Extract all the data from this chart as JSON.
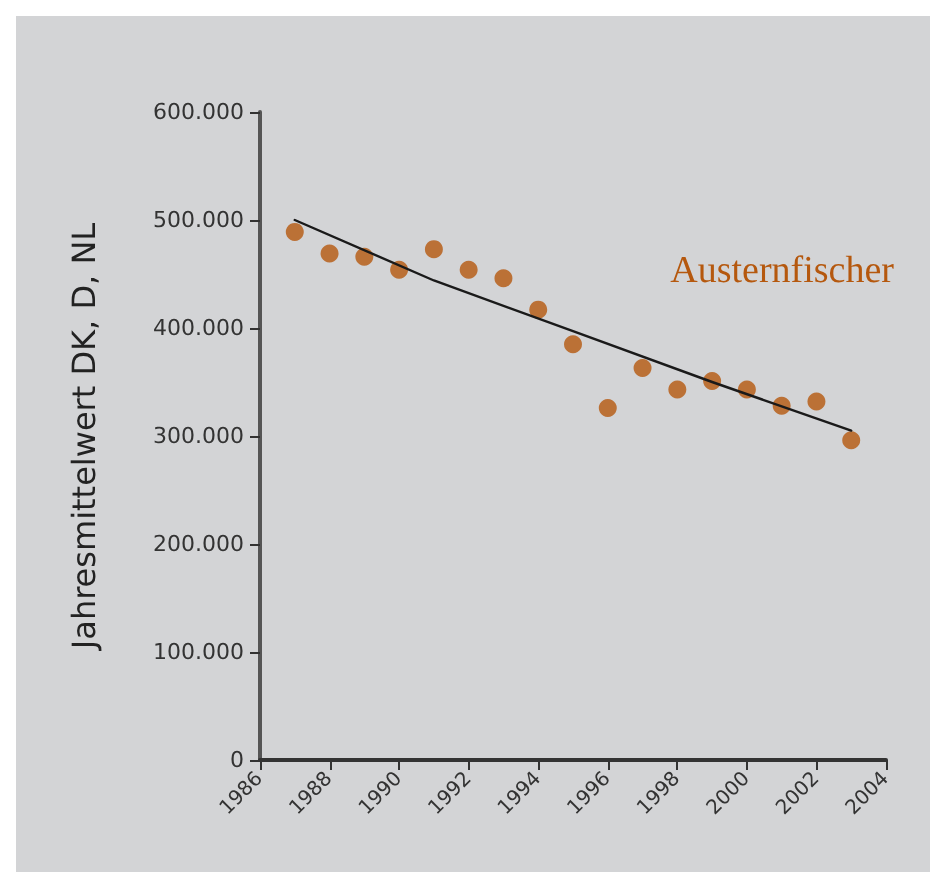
{
  "chart_data": {
    "type": "scatter",
    "ylabel": "Jahresmittelwert DK, D, NL",
    "x": [
      1987,
      1988,
      1989,
      1990,
      1991,
      1992,
      1993,
      1994,
      1995,
      1996,
      1997,
      1998,
      1999,
      2000,
      2001,
      2002,
      2003
    ],
    "series": [
      {
        "name": "Austernfischer",
        "color": "#b5580e",
        "values": [
          489000,
          469000,
          466000,
          454000,
          473000,
          454000,
          446000,
          417000,
          385000,
          326000,
          363000,
          343000,
          351000,
          343000,
          328000,
          332000,
          296000
        ],
        "marker": "circle"
      },
      {
        "type": "line",
        "color": "#1a1a1a",
        "x": [
          1987,
          1991,
          1995,
          1999,
          2003
        ],
        "values": [
          500000,
          444000,
          397000,
          350000,
          305000
        ],
        "marker": "none"
      }
    ],
    "xlim": [
      1986,
      2004
    ],
    "xticks": [
      1986,
      1988,
      1990,
      1992,
      1994,
      1996,
      1998,
      2000,
      2002,
      2004
    ],
    "ylim": [
      0,
      600000
    ],
    "yticks": [
      {
        "value": 0,
        "label": "0"
      },
      {
        "value": 100000,
        "label": "100.000"
      },
      {
        "value": 200000,
        "label": "200.000"
      },
      {
        "value": 300000,
        "label": "300.000"
      },
      {
        "value": 400000,
        "label": "400.000"
      },
      {
        "value": 500000,
        "label": "500.000"
      },
      {
        "value": 600000,
        "label": "600.000"
      }
    ],
    "grid": false,
    "legend": false
  }
}
